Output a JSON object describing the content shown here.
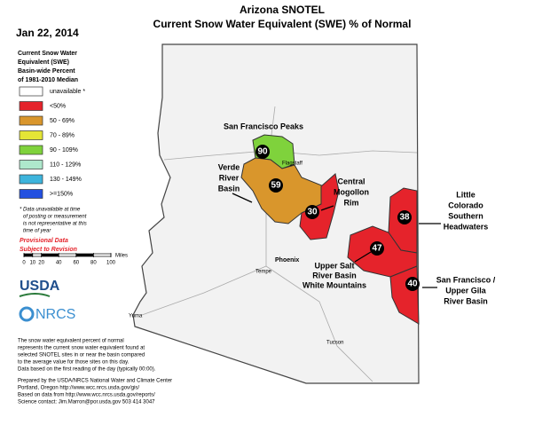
{
  "header": {
    "title": "Arizona SNOTEL",
    "subtitle": "Current Snow Water Equivalent (SWE) % of Normal",
    "date": "Jan 22, 2014"
  },
  "legend": {
    "title_lines": [
      "Current Snow Water",
      "Equivalent (SWE)",
      "Basin-wide Percent",
      "of 1981-2010 Median"
    ],
    "items": [
      {
        "label": "unavailable *",
        "color": "#ffffff"
      },
      {
        "label": "<50%",
        "color": "#e5232b"
      },
      {
        "label": "50 - 69%",
        "color": "#d9962c"
      },
      {
        "label": "70 - 89%",
        "color": "#e4e536"
      },
      {
        "label": "90 - 109%",
        "color": "#7fd23c"
      },
      {
        "label": "110 - 129%",
        "color": "#aee8cc"
      },
      {
        "label": "130 - 149%",
        "color": "#3db4dc"
      },
      {
        "label": ">=150%",
        "color": "#2350e0"
      }
    ],
    "footnote_lines": [
      "*  Data unavailable at time",
      "of posting or measurement",
      "is not representative at this",
      "time of year"
    ],
    "provisional_lines": [
      "Provisional Data",
      "Subject to Revision"
    ]
  },
  "scale": {
    "ticks": [
      0,
      10,
      20,
      40,
      60,
      80,
      100
    ],
    "unit": "Miles"
  },
  "logos": {
    "usda": "USDA",
    "nrcs": "NRCS"
  },
  "basins": [
    {
      "label_lines": [
        "San Francisco Peaks"
      ],
      "value": 90
    },
    {
      "label_lines": [
        "Verde",
        "River",
        "Basin"
      ],
      "value": 59
    },
    {
      "label_lines": [
        "Central",
        "Mogollon",
        "Rim"
      ],
      "value": 30
    },
    {
      "label_lines": [
        "Little",
        "Colorado",
        "Southern",
        "Headwaters"
      ],
      "value": 38
    },
    {
      "label_lines": [
        "Upper Salt",
        "River Basin",
        "White Mountains"
      ],
      "value": 47
    },
    {
      "label_lines": [
        "San Francisco /",
        "Upper Gila",
        "River Basin"
      ],
      "value": 40
    }
  ],
  "cities": [
    "Phoenix",
    "Tempe",
    "Yuma",
    "Tucson",
    "Flagstaff"
  ],
  "notes": {
    "description_lines": [
      "The snow water equivalent percent of normal",
      "represents the current snow water equivalent found at",
      "selected SNOTEL sites in or near the basin compared",
      "to the average value for those sites on this day.",
      "Data based on the first reading of the day (typically 00:00)."
    ],
    "credit_lines": [
      "Prepared by the USDA/NRCS National Water and Climate Center",
      "Portland, Oregon  http://www.wcc.nrcs.usda.gov/gis/",
      "Based on data from http://www.wcc.nrcs.usda.gov/reports/",
      "Science contact: Jim.Marron@por.usda.gov 503 414 3047"
    ]
  }
}
